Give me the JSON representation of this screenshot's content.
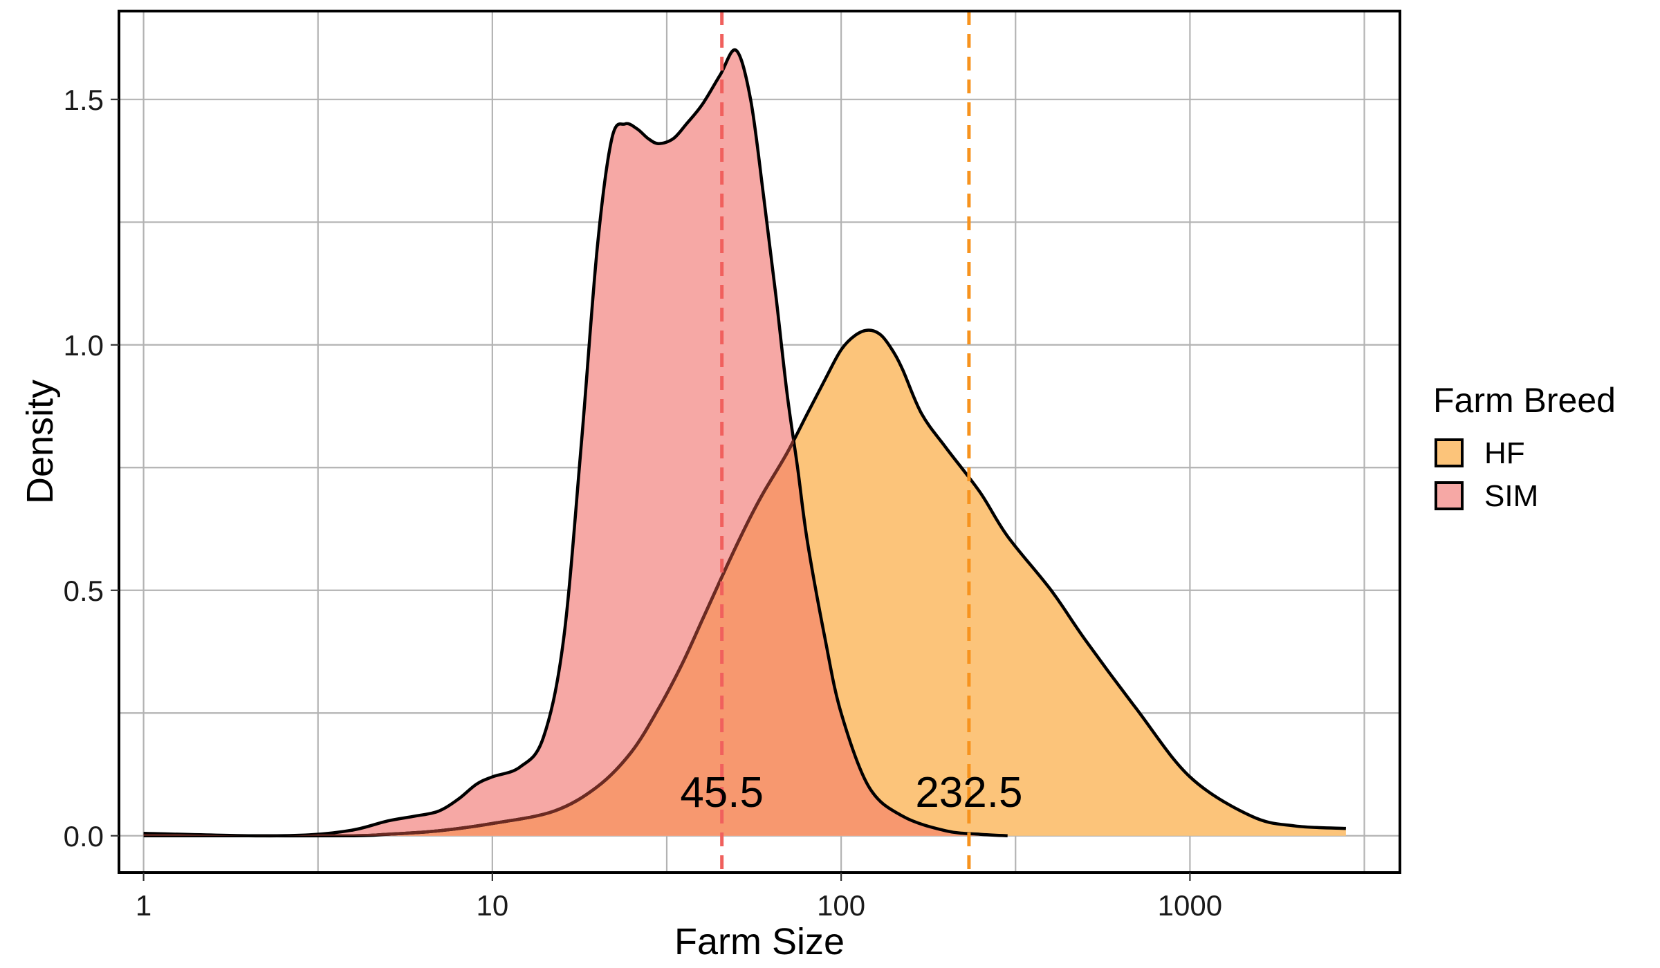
{
  "chart_data": {
    "type": "area",
    "xlabel": "Farm Size",
    "ylabel": "Density",
    "x_scale": "log10",
    "xlim": [
      0.85,
      4000
    ],
    "ylim": [
      -0.075,
      1.68
    ],
    "x_ticks": [
      1,
      10,
      100,
      1000
    ],
    "x_tick_labels": [
      "1",
      "10",
      "100",
      "1000"
    ],
    "y_ticks": [
      0,
      0.5,
      1.0,
      1.5
    ],
    "y_tick_labels": [
      "0.0",
      "0.5",
      "1.0",
      "1.5"
    ],
    "grid": true,
    "legend": {
      "title": "Farm Breed",
      "position": "right",
      "entries": [
        {
          "label": "HF",
          "color": "#fcc47a"
        },
        {
          "label": "SIM",
          "color": "#f6a8a5"
        }
      ]
    },
    "series": [
      {
        "name": "HF",
        "fill": "#fcc47a",
        "x": [
          1,
          2,
          4,
          5,
          7,
          10,
          15,
          20,
          25,
          30,
          35,
          40,
          45,
          50,
          55,
          60,
          70,
          80,
          90,
          100,
          110,
          120,
          130,
          140,
          150,
          170,
          200,
          250,
          300,
          400,
          500,
          700,
          1000,
          1500,
          2000,
          2800
        ],
        "y": [
          0.0,
          0.0,
          0.0,
          0.003,
          0.01,
          0.025,
          0.05,
          0.1,
          0.17,
          0.26,
          0.35,
          0.44,
          0.52,
          0.59,
          0.65,
          0.7,
          0.78,
          0.86,
          0.93,
          0.99,
          1.02,
          1.03,
          1.02,
          0.99,
          0.95,
          0.86,
          0.79,
          0.7,
          0.61,
          0.5,
          0.4,
          0.26,
          0.12,
          0.04,
          0.02,
          0.015
        ]
      },
      {
        "name": "SIM",
        "fill": "#f6a8a5",
        "x": [
          1,
          2,
          3,
          4,
          5,
          6,
          7,
          8,
          9,
          10,
          12,
          14,
          16,
          18,
          20,
          22,
          24,
          26,
          28,
          30,
          33,
          36,
          40,
          45,
          50,
          55,
          60,
          65,
          70,
          75,
          80,
          90,
          100,
          120,
          150,
          200,
          250,
          300
        ],
        "y": [
          0.005,
          0.0,
          0.002,
          0.012,
          0.03,
          0.04,
          0.05,
          0.075,
          0.105,
          0.12,
          0.14,
          0.2,
          0.4,
          0.8,
          1.2,
          1.42,
          1.45,
          1.44,
          1.42,
          1.41,
          1.42,
          1.45,
          1.49,
          1.55,
          1.6,
          1.5,
          1.3,
          1.1,
          0.9,
          0.75,
          0.6,
          0.4,
          0.25,
          0.1,
          0.04,
          0.01,
          0.003,
          0.0
        ]
      }
    ],
    "reference_lines": [
      {
        "x": 45.5,
        "color": "#f0605d",
        "style": "dashed"
      },
      {
        "x": 232.5,
        "color": "#f7931e",
        "style": "dashed"
      }
    ],
    "annotations": [
      {
        "text": "45.5",
        "x": 45.5,
        "y": 0.09
      },
      {
        "text": "232.5",
        "x": 232.5,
        "y": 0.09
      }
    ],
    "overlap_color": "#f7986f"
  }
}
